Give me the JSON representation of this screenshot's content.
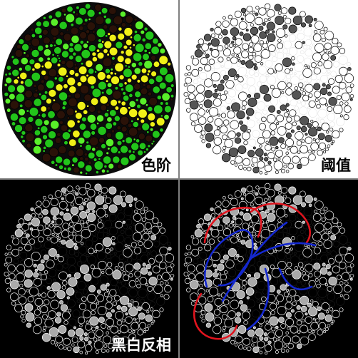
{
  "panels": [
    {
      "label": "色阶",
      "style": "color"
    },
    {
      "label": "阈值",
      "style": "threshold"
    },
    {
      "label": "黑白反相",
      "style": "inverted"
    },
    {
      "label": "",
      "style": "traced"
    }
  ],
  "colors": {
    "green": "#22c41a",
    "bright_green": "#59ee2a",
    "yellow": "#f0f018",
    "dark": "#2a1208",
    "stroke": "#000000",
    "trace_red": "#e0141e",
    "trace_blue": "#1428d0"
  }
}
